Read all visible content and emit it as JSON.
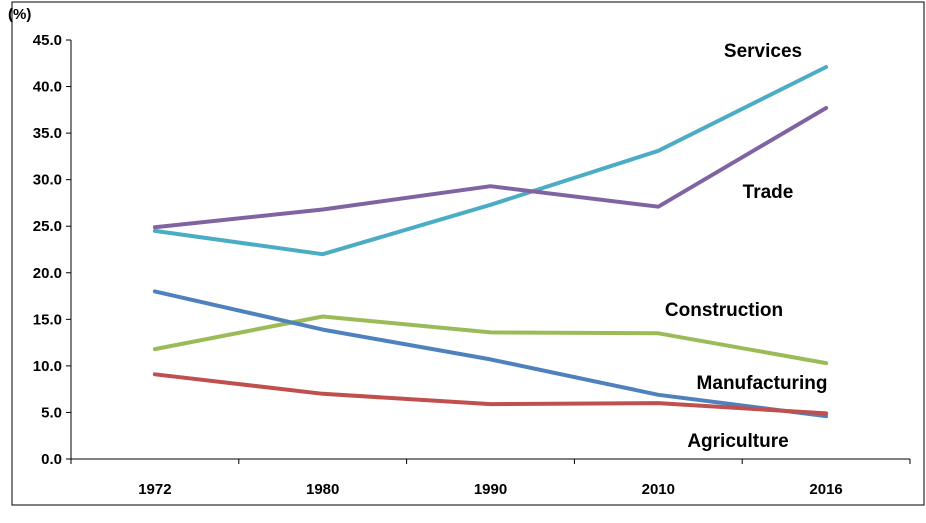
{
  "chart_data": {
    "type": "line",
    "title": "",
    "xlabel": "",
    "ylabel": "(%)",
    "categories": [
      "1972",
      "1980",
      "1990",
      "2010",
      "2016"
    ],
    "y_ticks": [
      "0.0",
      "5.0",
      "10.0",
      "15.0",
      "20.0",
      "25.0",
      "30.0",
      "35.0",
      "40.0",
      "45.0"
    ],
    "ylim": [
      0,
      45
    ],
    "grid": false,
    "legend": "inline labels at right",
    "series": [
      {
        "name": "Services",
        "color": "#4BACC6",
        "values": [
          24.5,
          22.0,
          27.3,
          33.1,
          42.1
        ]
      },
      {
        "name": "Trade",
        "color": "#8064A2",
        "values": [
          24.9,
          26.8,
          29.3,
          27.1,
          37.7
        ]
      },
      {
        "name": "Construction",
        "color": "#9BBB59",
        "values": [
          11.8,
          15.3,
          13.6,
          13.5,
          10.3
        ]
      },
      {
        "name": "Manufacturing",
        "color": "#4F81BD",
        "values": [
          18.0,
          13.9,
          10.7,
          6.9,
          4.6
        ]
      },
      {
        "name": "Agriculture",
        "color": "#C0504D",
        "values": [
          9.1,
          7.0,
          5.9,
          6.0,
          4.9
        ]
      }
    ]
  }
}
